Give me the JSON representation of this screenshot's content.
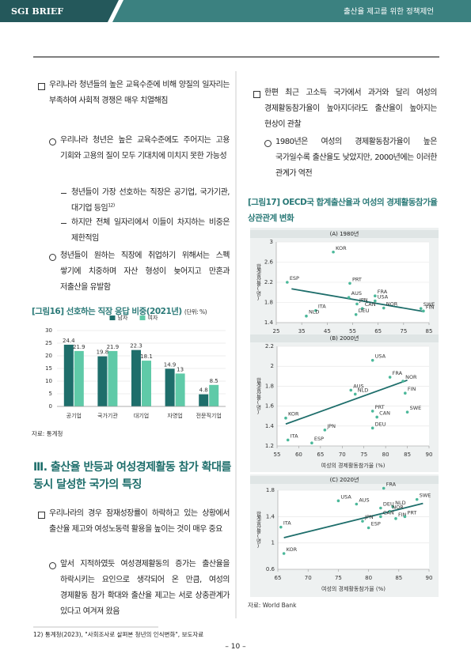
{
  "header": {
    "brand": "SGI BRIEF",
    "title": "출산율 제고를 위한 정책제언"
  },
  "left_column": {
    "paragraphs": [
      "우리나라 청년들의 높은 교육수준에 비해 양질의 일자리는 부족하여 사회적 경쟁은 매우 치열해짐",
      "우리나라 청년은 높은 교육수준에도 주어지는 고용 기회와 고용의 질이 모두 기대치에 미치지 못한 가능성",
      "청년들이 가장 선호하는 직장은 공기업, 국가기관, 대기업 등임",
      "하지만 전체 일자리에서 이들이 차지하는 비중은 제한적임",
      "청년들이 원하는 직장에 취업하기 위해서는 스펙 쌓기에 치중하며 자산 형성이 늦어지고 만혼과 저출산을 유발함"
    ],
    "footnote_ref": "12)",
    "section_title": "Ⅲ. 출산율 반등과 여성경제활동 참가 확대를 동시 달성한 국가의 특징",
    "section_paragraphs": [
      "우리나라의 경우 잠재성장률이 하락하고 있는 상황에서 출산율 제고와 여성노동력 활용을 높이는 것이 매우 중요",
      "앞서 지적하였듯 여성경제활동의 증가는 출산율을 하락시키는 요인으로 생각되어 온 만큼, 여성의 경제활동 참가 확대와 출산율 제고는 서로 상충관계가 있다고 여겨져 왔음"
    ]
  },
  "right_column": {
    "paragraphs": [
      "한편 최근 고소득 국가에서 과거와 달리 여성의 경제활동참가율이 높아지더라도 출산율이 높아지는 현상이 관찰",
      "1980년은 여성의 경제활동참가율이 높은 국가일수록 출산율도 낮았지만, 2000년에는 이러한 관계가 역전"
    ],
    "figure_title": "[그림17] OECD국 합계출산율과 여성의 경제활동참가율 상관관계 변화",
    "source": "자료: World Bank"
  },
  "footer": {
    "footnote": "12) 통계청(2023), \"사회조사로 살펴본 청년의 인식변화\", 보도자료",
    "page": "– 10 –"
  },
  "chart_data": [
    {
      "type": "bar",
      "title": "[그림16] 선호하는 직장 응답 비중(2021년)",
      "unit": "(단위: %)",
      "categories": [
        "공기업",
        "국가기관",
        "대기업",
        "자영업",
        "전문직기업"
      ],
      "series": [
        {
          "name": "남자",
          "color": "#1e6e6b",
          "values": [
            24.4,
            19.8,
            22.3,
            14.9,
            4.8
          ]
        },
        {
          "name": "여자",
          "color": "#5fcaa8",
          "values": [
            21.9,
            21.9,
            18.1,
            13,
            8.5
          ]
        }
      ],
      "ylim": [
        0,
        30
      ],
      "yticks": [
        0,
        5,
        10,
        15,
        20,
        25,
        30
      ],
      "grid": true,
      "legend": "top",
      "source": "자료: 통계청"
    },
    {
      "type": "scatter",
      "title": "(A) 1980년",
      "xlabel": "여성의 경제활동참가율 (%)",
      "ylabel": "합계출산율(명)",
      "labels": [
        "KOR",
        "ESP",
        "PRT",
        "AUS",
        "FRA",
        "USA",
        "JPN",
        "CAN",
        "NOR",
        "ITA",
        "NLD",
        "DEU",
        "SWE",
        "FIN"
      ],
      "x": [
        47.4,
        29.3,
        53.9,
        53.5,
        63.8,
        63.8,
        56.7,
        58.8,
        67.2,
        40.5,
        36.8,
        56.3,
        81.8,
        82.8
      ],
      "y": [
        2.8,
        2.2,
        2.18,
        1.9,
        1.93,
        1.83,
        1.77,
        1.68,
        1.69,
        1.64,
        1.53,
        1.56,
        1.68,
        1.63
      ],
      "xlim": [
        25,
        85
      ],
      "xticks": [
        25,
        35,
        45,
        55,
        65,
        75,
        85
      ],
      "ylim": [
        1.4,
        3
      ],
      "yticks": [
        1.4,
        1.8,
        2.2,
        2.6,
        3
      ],
      "grid": true,
      "color": "#4bb89a",
      "trendline": {
        "x": [
          31,
          83
        ],
        "y": [
          2.07,
          1.62
        ],
        "color": "#1e6e6b"
      }
    },
    {
      "type": "scatter",
      "title": "(B) 2000년",
      "xlabel": "여성의 경제활동참가율 (%)",
      "ylabel": "합계출산율(명)",
      "labels": [
        "USA",
        "FRA",
        "NOR",
        "AUS",
        "NLD",
        "FIN",
        "SWE",
        "PRT",
        "CAN",
        "DEU",
        "KOR",
        "JPN",
        "ITA",
        "ESP"
      ],
      "x": [
        77,
        81,
        84,
        72,
        73,
        84.5,
        85,
        77,
        78,
        77,
        57,
        66,
        57.5,
        63
      ],
      "y": [
        2.06,
        1.89,
        1.85,
        1.76,
        1.72,
        1.73,
        1.54,
        1.55,
        1.49,
        1.38,
        1.48,
        1.36,
        1.26,
        1.23
      ],
      "xlim": [
        55,
        90
      ],
      "xticks": [
        55,
        60,
        65,
        70,
        75,
        80,
        85,
        90
      ],
      "ylim": [
        1.2,
        2.2
      ],
      "yticks": [
        1.2,
        1.4,
        1.6,
        1.8,
        2,
        2.2
      ],
      "grid": true,
      "color": "#4bb89a",
      "trendline": {
        "x": [
          57,
          85
        ],
        "y": [
          1.42,
          1.86
        ],
        "color": "#1e6e6b"
      }
    },
    {
      "type": "scatter",
      "title": "(C) 2020년",
      "xlabel": "여성의 경제활동참가율 (%)",
      "ylabel": "합계출산율(명)",
      "labels": [
        "FRA",
        "SWE",
        "USA",
        "AUS",
        "DEU",
        "NLD",
        "NOR",
        "FIN",
        "PRT",
        "CAN",
        "JPN",
        "ESP",
        "ITA",
        "KOR"
      ],
      "x": [
        82.5,
        88,
        75,
        78,
        82,
        84,
        83.5,
        84.5,
        86,
        82,
        79,
        80,
        65.5,
        66
      ],
      "y": [
        1.83,
        1.66,
        1.64,
        1.59,
        1.53,
        1.55,
        1.48,
        1.37,
        1.4,
        1.4,
        1.33,
        1.23,
        1.24,
        0.84
      ],
      "xlim": [
        65,
        90
      ],
      "xticks": [
        65,
        70,
        75,
        80,
        85,
        90
      ],
      "ylim": [
        0.6,
        1.8
      ],
      "yticks": [
        0.6,
        1,
        1.4,
        1.8
      ],
      "grid": true,
      "color": "#4bb89a",
      "trendline": {
        "x": [
          66,
          89
        ],
        "y": [
          1.08,
          1.6
        ],
        "color": "#1e6e6b"
      }
    }
  ]
}
